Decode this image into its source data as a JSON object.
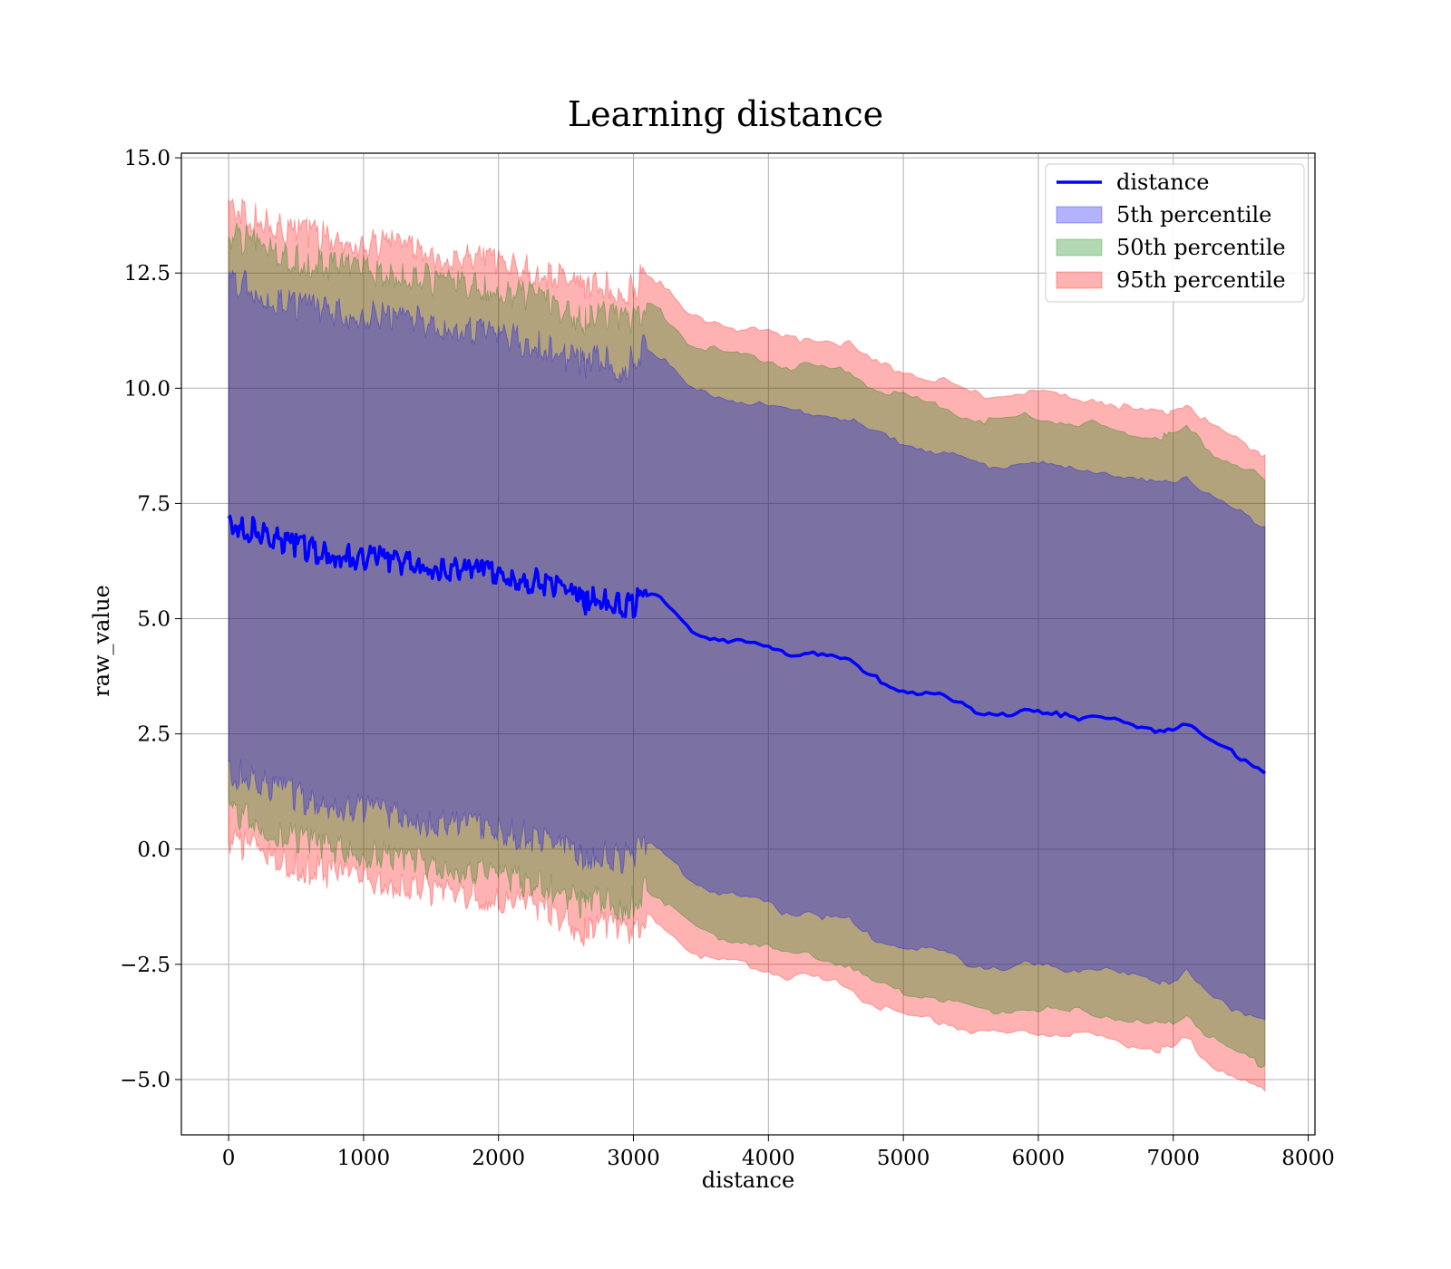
{
  "chart_data": {
    "type": "area",
    "title": "Learning distance",
    "xlabel": "distance",
    "ylabel": "raw_value",
    "xlim": [
      -350,
      8050
    ],
    "ylim": [
      -6.2,
      15.1
    ],
    "xticks": [
      0,
      1000,
      2000,
      3000,
      4000,
      5000,
      6000,
      7000,
      8000
    ],
    "xtick_labels": [
      "0",
      "1000",
      "2000",
      "3000",
      "4000",
      "5000",
      "6000",
      "7000",
      "8000"
    ],
    "yticks": [
      15.0,
      12.5,
      10.0,
      7.5,
      5.0,
      2.5,
      0.0,
      -2.5,
      -5.0
    ],
    "ytick_labels": [
      "15.0",
      "12.5",
      "10.0",
      "7.5",
      "5.0",
      "2.5",
      "0.0",
      "−2.5",
      "−5.0"
    ],
    "grid": true,
    "legend_position": "top-right",
    "x": [
      0,
      100,
      200,
      300,
      400,
      500,
      600,
      700,
      800,
      900,
      1000,
      1100,
      1200,
      1300,
      1400,
      1500,
      1600,
      1700,
      1800,
      1900,
      2000,
      2100,
      2200,
      2300,
      2400,
      2500,
      2600,
      2650,
      2700,
      2800,
      2900,
      3000,
      3100,
      3200,
      3300,
      3400,
      3500,
      3600,
      3700,
      3800,
      3900,
      4000,
      4100,
      4200,
      4300,
      4400,
      4500,
      4600,
      4700,
      4800,
      4900,
      5000,
      5100,
      5200,
      5300,
      5400,
      5500,
      5600,
      5700,
      5800,
      5900,
      6000,
      6100,
      6200,
      6300,
      6400,
      6500,
      6600,
      6700,
      6800,
      6900,
      6950,
      7000,
      7100,
      7200,
      7300,
      7400,
      7500,
      7600,
      7680
    ],
    "series": [
      {
        "name": "distance",
        "kind": "line",
        "color": "#0000ff",
        "values": [
          7.05,
          7.0,
          6.9,
          6.8,
          6.7,
          6.6,
          6.5,
          6.45,
          6.4,
          6.35,
          6.3,
          6.3,
          6.25,
          6.2,
          6.2,
          6.15,
          6.1,
          6.05,
          6.0,
          6.0,
          5.95,
          5.9,
          5.85,
          5.8,
          5.7,
          5.6,
          5.45,
          5.3,
          5.45,
          5.4,
          5.3,
          5.3,
          5.55,
          5.4,
          5.15,
          4.8,
          4.65,
          4.6,
          4.55,
          4.5,
          4.45,
          4.35,
          4.25,
          4.2,
          4.3,
          4.25,
          4.15,
          4.1,
          3.85,
          3.7,
          3.55,
          3.45,
          3.4,
          3.35,
          3.3,
          3.15,
          3.05,
          2.95,
          2.95,
          2.95,
          3.0,
          2.95,
          2.9,
          2.95,
          2.85,
          2.9,
          2.85,
          2.75,
          2.65,
          2.6,
          2.6,
          2.6,
          2.65,
          2.75,
          2.5,
          2.3,
          2.15,
          2.0,
          1.85,
          1.65
        ]
      },
      {
        "name": "5th percentile",
        "kind": "band",
        "color": "#0000ff",
        "lower": [
          1.7,
          1.6,
          1.5,
          1.4,
          1.3,
          1.15,
          1.05,
          1.0,
          0.95,
          0.9,
          0.85,
          0.8,
          0.75,
          0.7,
          0.65,
          0.6,
          0.55,
          0.5,
          0.45,
          0.45,
          0.4,
          0.35,
          0.3,
          0.2,
          0.1,
          0.0,
          -0.2,
          -0.3,
          -0.15,
          -0.1,
          -0.2,
          -0.15,
          0.1,
          -0.05,
          -0.3,
          -0.6,
          -0.8,
          -0.9,
          -0.95,
          -1.05,
          -1.1,
          -1.2,
          -1.35,
          -1.4,
          -1.35,
          -1.45,
          -1.5,
          -1.55,
          -1.8,
          -1.95,
          -2.05,
          -2.1,
          -2.15,
          -2.2,
          -2.25,
          -2.4,
          -2.5,
          -2.55,
          -2.55,
          -2.6,
          -2.5,
          -2.55,
          -2.55,
          -2.6,
          -2.6,
          -2.6,
          -2.65,
          -2.7,
          -2.75,
          -2.8,
          -2.85,
          -2.85,
          -2.85,
          -2.65,
          -3.0,
          -3.25,
          -3.4,
          -3.5,
          -3.6,
          -3.7
        ],
        "upper": [
          12.3,
          12.25,
          12.1,
          12.0,
          11.9,
          11.8,
          11.7,
          11.7,
          11.65,
          11.6,
          11.6,
          11.55,
          11.5,
          11.45,
          11.45,
          11.4,
          11.35,
          11.3,
          11.2,
          11.2,
          11.1,
          11.1,
          11.0,
          10.95,
          10.8,
          10.7,
          10.6,
          10.4,
          10.6,
          10.6,
          10.45,
          10.6,
          10.9,
          10.7,
          10.35,
          10.0,
          9.9,
          9.85,
          9.8,
          9.7,
          9.7,
          9.6,
          9.55,
          9.5,
          9.5,
          9.45,
          9.4,
          9.35,
          9.15,
          9.05,
          8.9,
          8.85,
          8.75,
          8.65,
          8.6,
          8.5,
          8.4,
          8.35,
          8.3,
          8.35,
          8.4,
          8.35,
          8.3,
          8.25,
          8.2,
          8.25,
          8.2,
          8.1,
          8.0,
          7.95,
          7.95,
          7.95,
          8.0,
          8.1,
          7.85,
          7.6,
          7.45,
          7.3,
          7.15,
          7.0
        ]
      },
      {
        "name": "50th percentile",
        "kind": "band",
        "color": "#008000",
        "lower": [
          0.8,
          0.7,
          0.55,
          0.45,
          0.35,
          0.25,
          0.1,
          0.05,
          0.0,
          -0.05,
          -0.1,
          -0.15,
          -0.2,
          -0.25,
          -0.3,
          -0.35,
          -0.4,
          -0.45,
          -0.5,
          -0.55,
          -0.6,
          -0.65,
          -0.7,
          -0.75,
          -0.85,
          -0.95,
          -1.2,
          -1.3,
          -1.15,
          -1.15,
          -1.25,
          -1.15,
          -0.9,
          -1.05,
          -1.35,
          -1.6,
          -1.8,
          -1.9,
          -1.95,
          -2.0,
          -2.05,
          -2.15,
          -2.25,
          -2.3,
          -2.25,
          -2.35,
          -2.45,
          -2.5,
          -2.75,
          -2.9,
          -3.0,
          -3.1,
          -3.15,
          -3.2,
          -3.25,
          -3.35,
          -3.45,
          -3.5,
          -3.5,
          -3.5,
          -3.45,
          -3.5,
          -3.5,
          -3.55,
          -3.5,
          -3.55,
          -3.6,
          -3.7,
          -3.75,
          -3.8,
          -3.8,
          -3.8,
          -3.75,
          -3.55,
          -3.9,
          -4.15,
          -4.3,
          -4.45,
          -4.6,
          -4.7
        ],
        "upper": [
          13.3,
          13.25,
          13.1,
          13.0,
          12.9,
          12.8,
          12.75,
          12.7,
          12.65,
          12.6,
          12.55,
          12.5,
          12.5,
          12.45,
          12.4,
          12.35,
          12.3,
          12.25,
          12.2,
          12.15,
          12.1,
          12.05,
          12.0,
          11.95,
          11.8,
          11.7,
          11.55,
          11.4,
          11.6,
          11.55,
          11.45,
          11.55,
          11.85,
          11.65,
          11.35,
          11.0,
          10.9,
          10.85,
          10.75,
          10.7,
          10.65,
          10.6,
          10.5,
          10.45,
          10.5,
          10.45,
          10.4,
          10.35,
          10.15,
          10.0,
          9.9,
          9.85,
          9.75,
          9.65,
          9.6,
          9.45,
          9.35,
          9.3,
          9.3,
          9.35,
          9.4,
          9.35,
          9.3,
          9.25,
          9.2,
          9.25,
          9.15,
          9.05,
          9.0,
          8.95,
          8.95,
          8.95,
          9.0,
          9.15,
          8.85,
          8.6,
          8.45,
          8.3,
          8.15,
          8.0
        ]
      },
      {
        "name": "95th percentile",
        "kind": "band",
        "color": "#ff0000",
        "lower": [
          0.2,
          0.05,
          -0.05,
          -0.15,
          -0.25,
          -0.35,
          -0.45,
          -0.5,
          -0.55,
          -0.6,
          -0.65,
          -0.7,
          -0.75,
          -0.8,
          -0.85,
          -0.9,
          -0.95,
          -1.0,
          -1.05,
          -1.1,
          -1.15,
          -1.2,
          -1.25,
          -1.3,
          -1.4,
          -1.5,
          -1.75,
          -1.85,
          -1.7,
          -1.7,
          -1.8,
          -1.7,
          -1.45,
          -1.6,
          -1.9,
          -2.15,
          -2.3,
          -2.4,
          -2.45,
          -2.5,
          -2.55,
          -2.65,
          -2.75,
          -2.8,
          -2.75,
          -2.85,
          -2.9,
          -3.0,
          -3.25,
          -3.4,
          -3.5,
          -3.6,
          -3.65,
          -3.7,
          -3.75,
          -3.85,
          -3.95,
          -4.0,
          -4.0,
          -4.0,
          -3.95,
          -4.0,
          -4.0,
          -4.05,
          -4.0,
          -4.05,
          -4.1,
          -4.2,
          -4.25,
          -4.3,
          -4.35,
          -4.35,
          -4.3,
          -4.1,
          -4.45,
          -4.7,
          -4.85,
          -5.0,
          -5.15,
          -5.25
        ],
        "upper": [
          13.9,
          13.85,
          13.7,
          13.6,
          13.5,
          13.4,
          13.35,
          13.3,
          13.25,
          13.2,
          13.15,
          13.1,
          13.1,
          13.05,
          13.0,
          12.95,
          12.9,
          12.85,
          12.8,
          12.75,
          12.7,
          12.65,
          12.6,
          12.55,
          12.45,
          12.35,
          12.2,
          12.05,
          12.25,
          12.2,
          12.1,
          12.2,
          12.5,
          12.25,
          11.95,
          11.6,
          11.5,
          11.45,
          11.35,
          11.3,
          11.25,
          11.2,
          11.1,
          11.05,
          11.1,
          11.05,
          11.0,
          10.95,
          10.7,
          10.55,
          10.45,
          10.4,
          10.3,
          10.2,
          10.15,
          10.0,
          9.9,
          9.85,
          9.85,
          9.9,
          9.95,
          9.9,
          9.85,
          9.8,
          9.75,
          9.8,
          9.7,
          9.6,
          9.55,
          9.5,
          9.5,
          9.5,
          9.55,
          9.7,
          9.4,
          9.15,
          9.0,
          8.85,
          8.7,
          8.55
        ]
      }
    ]
  }
}
